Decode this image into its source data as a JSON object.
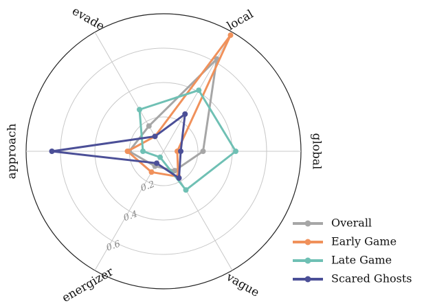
{
  "chart_data": {
    "type": "radar",
    "axes": [
      "global",
      "local",
      "evade",
      "approach",
      "energizer",
      "vague"
    ],
    "ticks": [
      {
        "value": 0.2,
        "label": "0.2"
      },
      {
        "value": 0.4,
        "label": "0.4"
      },
      {
        "value": 0.6,
        "label": "0.6"
      }
    ],
    "rmax": 0.8,
    "grid": true,
    "legend_position": "bottom-right",
    "series": [
      {
        "name": "Overall",
        "color": "#a6a6a6",
        "values": [
          0.23,
          0.62,
          0.17,
          0.2,
          0.1,
          0.13
        ]
      },
      {
        "name": "Early Game",
        "color": "#f0915b",
        "values": [
          0.08,
          0.78,
          0.1,
          0.21,
          0.14,
          0.17
        ]
      },
      {
        "name": "Late Game",
        "color": "#6fc0b4",
        "values": [
          0.42,
          0.41,
          0.28,
          0.12,
          0.04,
          0.26
        ]
      },
      {
        "name": "Scared Ghosts",
        "color": "#4b4f97",
        "values": [
          0.1,
          0.25,
          0.1,
          0.65,
          0.08,
          0.18
        ]
      }
    ]
  }
}
